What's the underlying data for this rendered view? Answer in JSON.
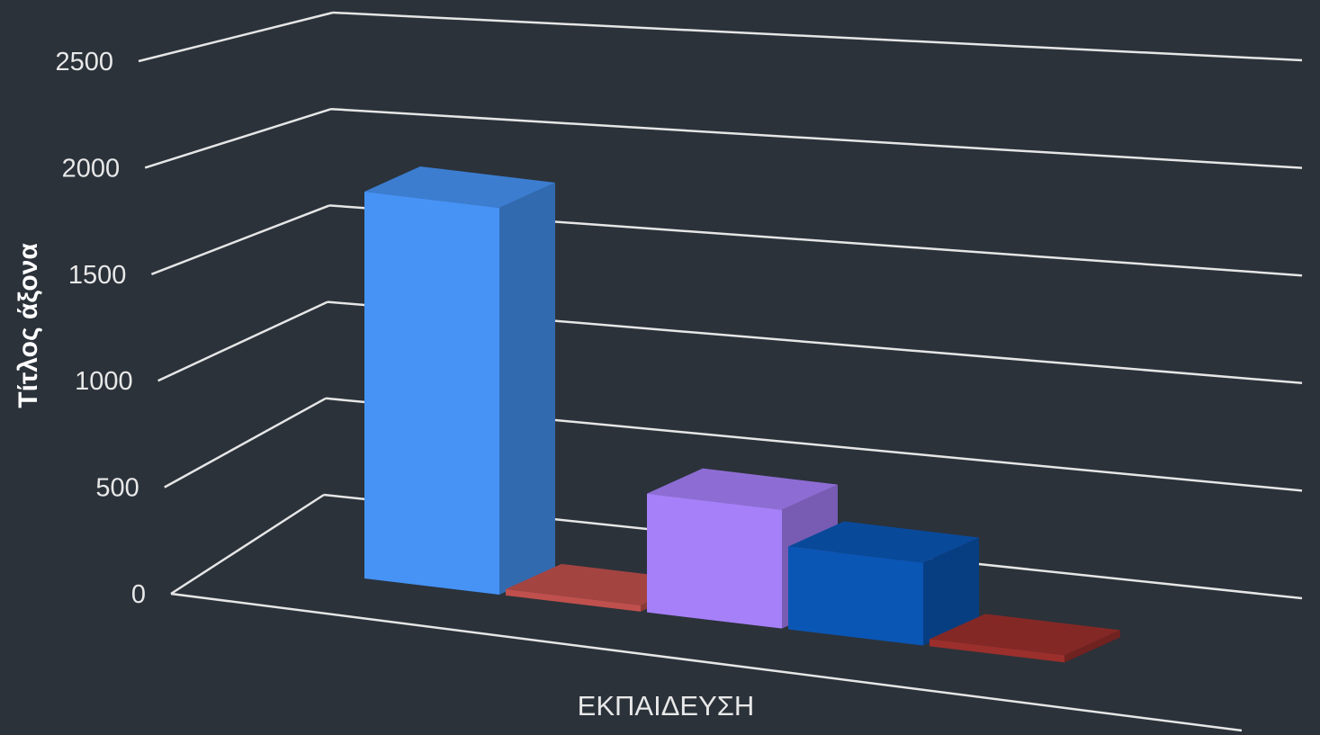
{
  "chart_data": {
    "type": "bar",
    "title": "",
    "ylabel": "Τίτλος άξονα",
    "xlabel": "",
    "categories": [
      "ΕΚΠΑΙΔΕΥΣΗ"
    ],
    "ylim": [
      0,
      2500
    ],
    "yticks": [
      0,
      500,
      1000,
      1500,
      2000,
      2500
    ],
    "grid": true,
    "projection": "3d",
    "series": [
      {
        "values": [
          2150
        ],
        "color": "#4693f5"
      },
      {
        "values": [
          35
        ],
        "color": "#c0504d"
      },
      {
        "values": [
          660
        ],
        "color": "#a680f8"
      },
      {
        "values": [
          460
        ],
        "color": "#0a56b5"
      },
      {
        "values": [
          40
        ],
        "color": "#9b2f2c"
      }
    ]
  }
}
